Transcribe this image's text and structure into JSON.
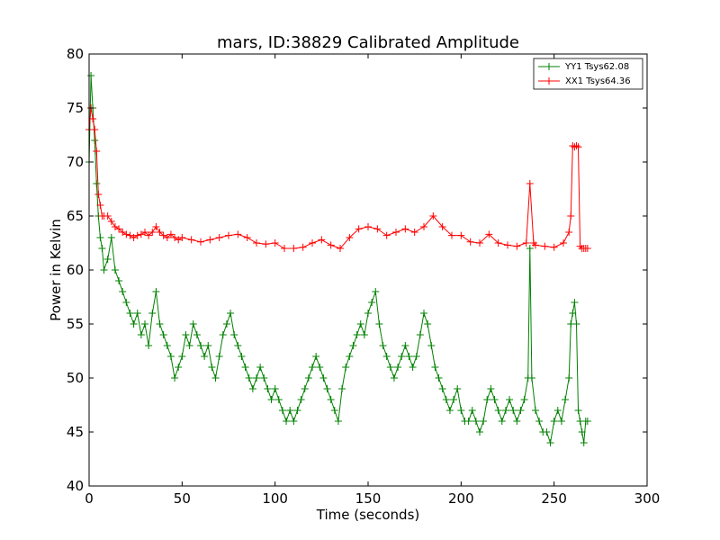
{
  "chart_data": {
    "type": "line",
    "title": "mars, ID:38829 Calibrated Amplitude",
    "xlabel": "Time (seconds)",
    "ylabel": "Power in Kelvin",
    "xlim": [
      0,
      300
    ],
    "ylim": [
      40,
      80
    ],
    "xticks": [
      0,
      50,
      100,
      150,
      200,
      250,
      300
    ],
    "yticks": [
      40,
      45,
      50,
      55,
      60,
      65,
      70,
      75,
      80
    ],
    "grid": false,
    "legend_position": "top-right",
    "series": [
      {
        "name": "YY1 Tsys62.08",
        "color": "#008000",
        "x": [
          0,
          1,
          2,
          3,
          4,
          5,
          6,
          7,
          8,
          10,
          12,
          14,
          16,
          18,
          20,
          22,
          24,
          26,
          28,
          30,
          32,
          34,
          36,
          38,
          40,
          42,
          44,
          46,
          48,
          50,
          52,
          54,
          56,
          58,
          60,
          62,
          64,
          66,
          68,
          70,
          72,
          74,
          76,
          78,
          80,
          82,
          84,
          86,
          88,
          90,
          92,
          94,
          96,
          98,
          100,
          102,
          104,
          106,
          108,
          110,
          112,
          114,
          116,
          118,
          120,
          122,
          124,
          126,
          128,
          130,
          132,
          134,
          136,
          138,
          140,
          142,
          144,
          146,
          148,
          150,
          152,
          154,
          156,
          158,
          160,
          162,
          164,
          166,
          168,
          170,
          172,
          174,
          176,
          178,
          180,
          182,
          184,
          186,
          188,
          190,
          192,
          194,
          196,
          198,
          200,
          202,
          204,
          206,
          208,
          210,
          212,
          214,
          216,
          218,
          220,
          222,
          224,
          226,
          228,
          230,
          232,
          234,
          236,
          237,
          238,
          240,
          242,
          244,
          246,
          248,
          250,
          252,
          254,
          256,
          258,
          259,
          260,
          261,
          262,
          263,
          264,
          265,
          266,
          267,
          268
        ],
        "y": [
          70,
          78,
          75,
          72,
          68,
          65,
          63,
          62,
          60,
          61,
          63,
          60,
          59,
          58,
          57,
          56,
          55,
          56,
          54,
          55,
          53,
          56,
          58,
          55,
          54,
          53,
          52,
          50,
          51,
          52,
          54,
          53,
          55,
          54,
          53,
          52,
          53,
          51,
          50,
          52,
          54,
          55,
          56,
          54,
          53,
          52,
          51,
          50,
          49,
          50,
          51,
          50,
          49,
          48,
          49,
          48,
          47,
          46,
          47,
          46,
          47,
          48,
          49,
          50,
          51,
          52,
          51,
          50,
          49,
          48,
          47,
          46,
          49,
          51,
          52,
          53,
          54,
          55,
          54,
          56,
          57,
          58,
          55,
          53,
          52,
          51,
          50,
          51,
          52,
          53,
          52,
          51,
          52,
          54,
          56,
          55,
          53,
          51,
          50,
          49,
          48,
          47,
          48,
          49,
          47,
          46,
          46,
          47,
          46,
          45,
          46,
          48,
          49,
          48,
          47,
          46,
          47,
          48,
          47,
          46,
          47,
          48,
          50,
          62,
          50,
          47,
          46,
          45,
          45,
          44,
          46,
          47,
          46,
          48,
          50,
          55,
          56,
          57,
          55,
          47,
          46,
          45,
          44,
          46,
          46
        ]
      },
      {
        "name": "XX1 Tsys64.36",
        "color": "#ff0000",
        "x": [
          0,
          1,
          2,
          3,
          4,
          5,
          6,
          7,
          8,
          10,
          12,
          14,
          16,
          18,
          20,
          22,
          24,
          26,
          28,
          30,
          32,
          34,
          36,
          38,
          40,
          42,
          44,
          46,
          48,
          50,
          55,
          60,
          65,
          70,
          75,
          80,
          85,
          90,
          95,
          100,
          105,
          110,
          115,
          120,
          125,
          130,
          135,
          140,
          145,
          150,
          155,
          160,
          165,
          170,
          175,
          180,
          185,
          190,
          195,
          200,
          205,
          210,
          215,
          220,
          225,
          230,
          235,
          237,
          239,
          240,
          245,
          250,
          255,
          258,
          259,
          260,
          261,
          262,
          263,
          264,
          265,
          266,
          267,
          268
        ],
        "y": [
          73,
          75,
          74,
          73,
          71,
          67,
          66,
          65,
          65,
          65,
          64.5,
          64,
          63.8,
          63.5,
          63.3,
          63.2,
          63,
          63.2,
          63.3,
          63.5,
          63.2,
          63.5,
          64,
          63.5,
          63.2,
          63,
          63.3,
          63,
          62.8,
          63,
          62.8,
          62.6,
          62.8,
          63,
          63.2,
          63.3,
          63,
          62.5,
          62.4,
          62.5,
          62,
          62,
          62.1,
          62.5,
          62.8,
          62.3,
          62,
          63,
          63.8,
          64,
          63.8,
          63.2,
          63.5,
          63.8,
          63.5,
          64,
          65,
          64,
          63.2,
          63.2,
          62.6,
          62.5,
          63.3,
          62.5,
          62.3,
          62.2,
          62.5,
          68,
          62.5,
          62.3,
          62.2,
          62.1,
          62.5,
          63.5,
          65,
          71.5,
          71.4,
          71.5,
          71.4,
          62.2,
          62,
          62,
          62,
          62
        ]
      }
    ]
  }
}
